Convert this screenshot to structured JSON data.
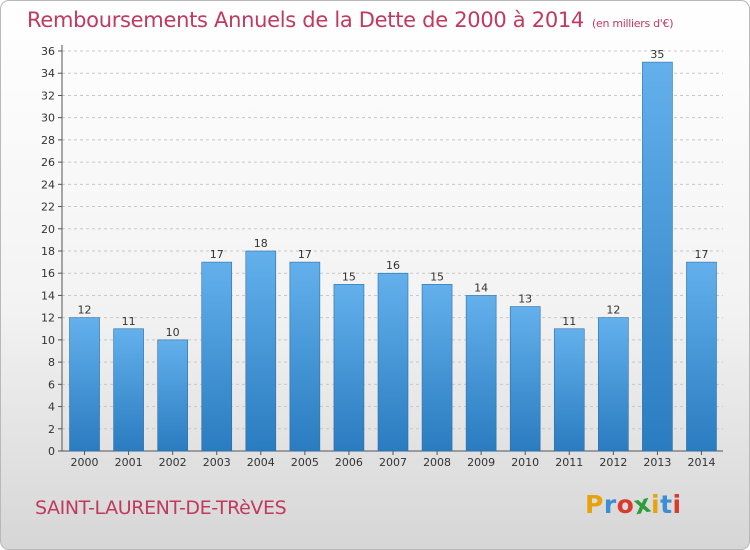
{
  "header": {
    "title": "Remboursements Annuels de la Dette de 2000 à 2014",
    "unit": "(en milliers d'€)"
  },
  "footer": {
    "commune": "SAINT-LAURENT-DE-TRèVES",
    "logo": {
      "letters": [
        "P",
        "r",
        "o",
        "x",
        "i",
        "t",
        "i"
      ],
      "colors": [
        "#e8a20c",
        "#3a8ed4",
        "#d93a2b",
        "#2e9e3a",
        "#e8a20c",
        "#3a8ed4",
        "#d93a2b"
      ]
    }
  },
  "colors": {
    "bar_light": "#63b0ec",
    "bar_dark": "#2a7cc0",
    "text_accent": "#c0395e"
  },
  "chart_data": {
    "type": "bar",
    "categories": [
      "2000",
      "2001",
      "2002",
      "2003",
      "2004",
      "2005",
      "2006",
      "2007",
      "2008",
      "2009",
      "2010",
      "2011",
      "2012",
      "2013",
      "2014"
    ],
    "values": [
      12,
      11,
      10,
      17,
      18,
      17,
      15,
      16,
      15,
      14,
      13,
      11,
      12,
      35,
      17
    ],
    "ylim": [
      0,
      36
    ],
    "yticks": [
      0,
      2,
      4,
      6,
      8,
      10,
      12,
      14,
      16,
      18,
      20,
      22,
      24,
      26,
      28,
      30,
      32,
      34,
      36
    ],
    "grid": true
  }
}
